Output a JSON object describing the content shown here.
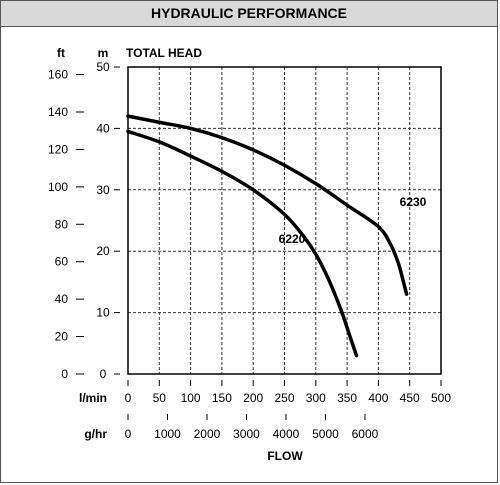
{
  "header": {
    "title": "HYDRAULIC PERFORMANCE"
  },
  "chart_data": {
    "type": "line",
    "title": "TOTAL HEAD",
    "xlabel": "FLOW",
    "y_units": {
      "primary": "m",
      "secondary": "ft"
    },
    "x_units": {
      "primary": "l/min",
      "secondary": "g/hr"
    },
    "ylim_m": [
      0,
      50
    ],
    "xlim_lmin": [
      0,
      500
    ],
    "y_ticks_m": [
      0,
      10,
      20,
      30,
      40,
      50
    ],
    "y_ticks_ft": [
      0,
      20,
      40,
      60,
      80,
      100,
      120,
      140,
      160
    ],
    "x_ticks_lmin": [
      0,
      50,
      100,
      150,
      200,
      250,
      300,
      350,
      400,
      450,
      500
    ],
    "x_ticks_ghr": [
      0,
      1000,
      2000,
      3000,
      4000,
      5000,
      6000
    ],
    "grid": true,
    "series": [
      {
        "name": "6230",
        "x": [
          0,
          50,
          100,
          150,
          200,
          250,
          300,
          350,
          400,
          420,
          432,
          440,
          445
        ],
        "y": [
          42,
          41,
          40,
          38.5,
          36.5,
          34,
          31,
          27.5,
          24,
          21,
          18,
          15,
          13
        ]
      },
      {
        "name": "6220",
        "x": [
          0,
          50,
          100,
          150,
          200,
          250,
          280,
          300,
          320,
          340,
          355,
          365
        ],
        "y": [
          39.5,
          37.8,
          35.5,
          33,
          30,
          26,
          22.5,
          19.5,
          15.5,
          10.5,
          6,
          3
        ]
      }
    ]
  }
}
